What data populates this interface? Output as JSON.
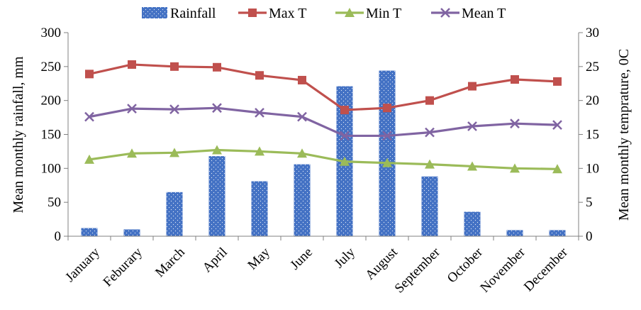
{
  "chart_data": {
    "type": "bar+line",
    "categories": [
      "January",
      "Feburary",
      "March",
      "April",
      "May",
      "June",
      "July",
      "August",
      "September",
      "October",
      "November",
      "December"
    ],
    "bar_series": {
      "name": "Rainfall",
      "axis": "left",
      "values": [
        12,
        10,
        65,
        118,
        81,
        106,
        221,
        244,
        88,
        36,
        9,
        9
      ],
      "color": "#4472C4"
    },
    "line_series": [
      {
        "name": "Max T",
        "axis": "right",
        "values": [
          23.9,
          25.3,
          25.0,
          24.9,
          23.7,
          23.0,
          18.6,
          18.9,
          20.0,
          22.1,
          23.1,
          22.8
        ],
        "color": "#C0504D",
        "marker": "square"
      },
      {
        "name": "Min T",
        "axis": "right",
        "values": [
          11.3,
          12.2,
          12.3,
          12.7,
          12.5,
          12.2,
          11.0,
          10.8,
          10.6,
          10.3,
          10.0,
          9.9
        ],
        "color": "#9BBB59",
        "marker": "triangle"
      },
      {
        "name": "Mean T",
        "axis": "right",
        "values": [
          17.6,
          18.8,
          18.7,
          18.9,
          18.2,
          17.6,
          14.8,
          14.8,
          15.3,
          16.2,
          16.6,
          16.4
        ],
        "color": "#8064A2",
        "marker": "x"
      }
    ],
    "ylabel_left": "Mean monthly rainfall, mm",
    "ylabel_right": "Mean monthly temprature, 0C",
    "ylim_left": [
      0,
      300
    ],
    "ylim_right": [
      0,
      30
    ],
    "yticks_left": [
      "0",
      "50",
      "100",
      "150",
      "200",
      "250",
      "300"
    ],
    "yticks_right": [
      "0",
      "5",
      "10",
      "15",
      "20",
      "25",
      "30"
    ],
    "grid": false,
    "legend_position": "top"
  }
}
